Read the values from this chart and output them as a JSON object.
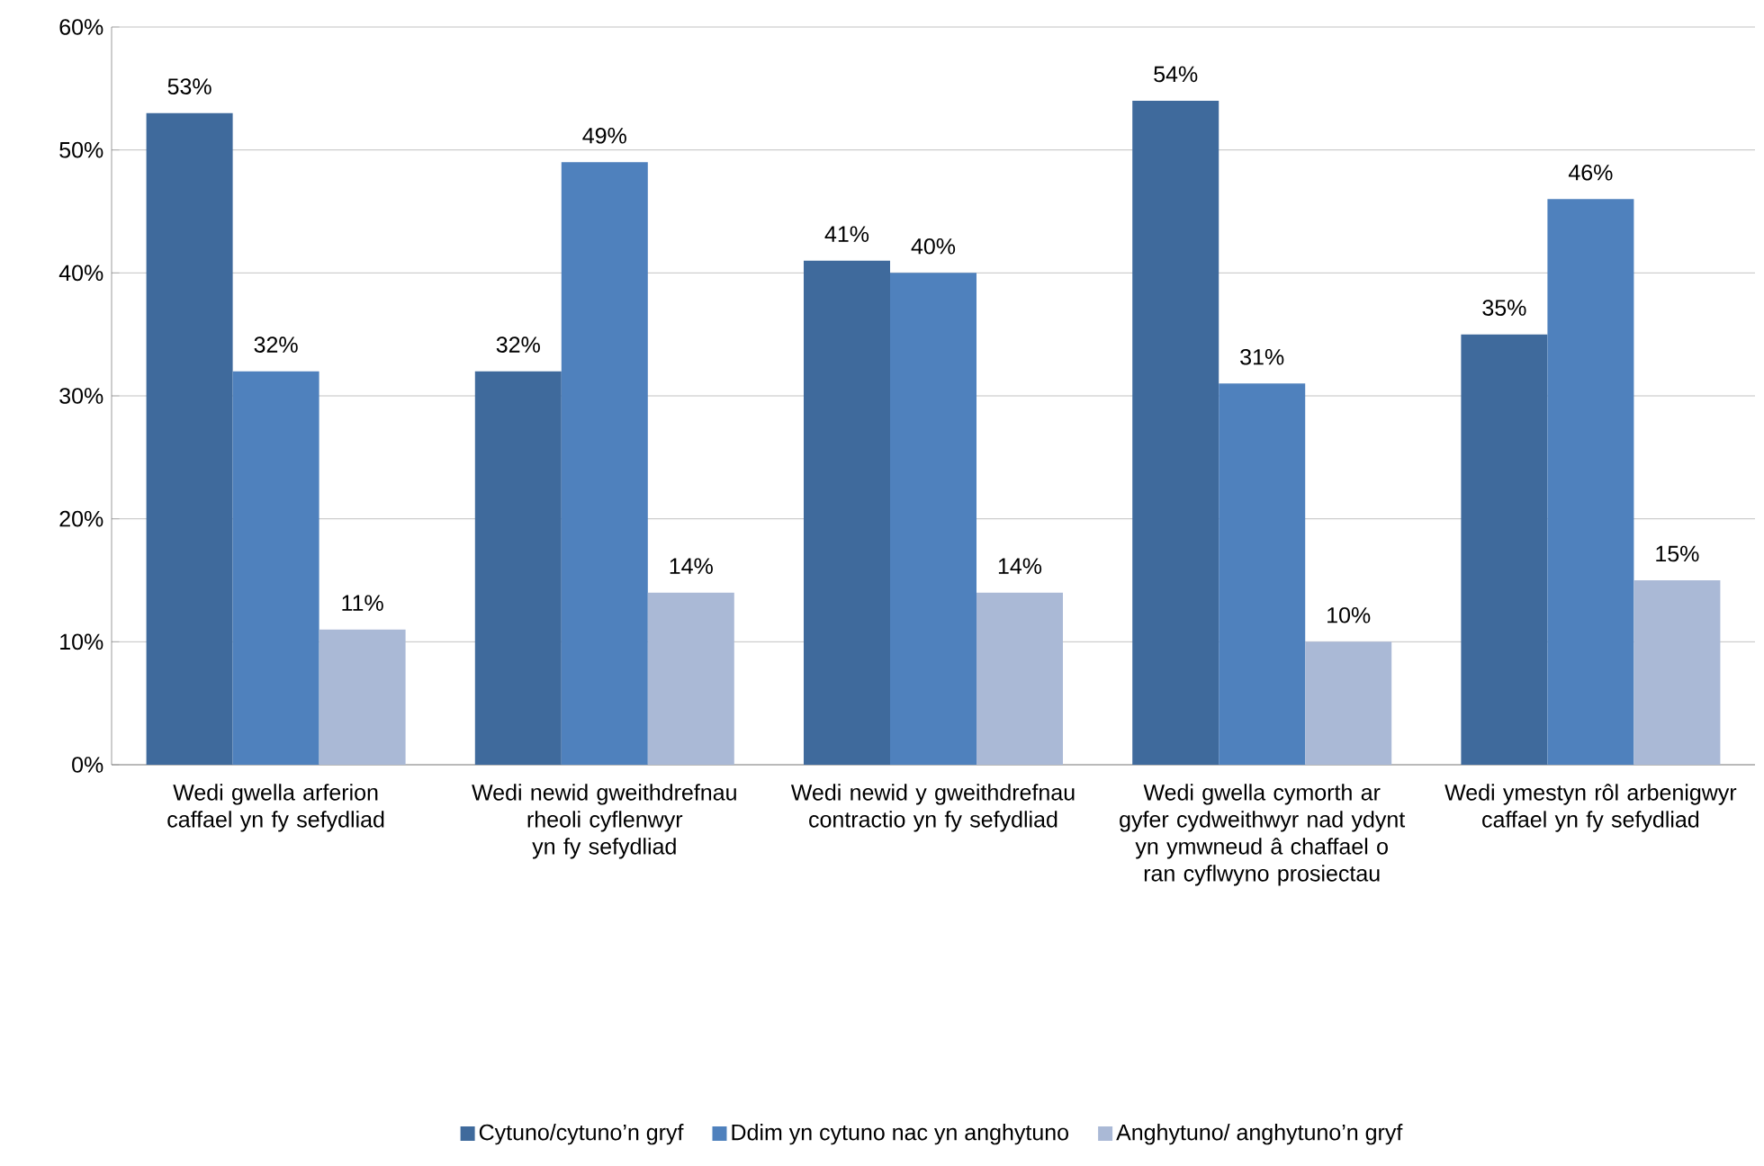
{
  "chart_data": {
    "type": "bar",
    "categories": [
      "Wedi gwella arferion caffael yn fy sefydliad",
      "Wedi newid gweithdrefnau rheoli cyflenwyr yn fy sefydliad",
      "Wedi newid y gweithdrefnau contractio yn fy sefydliad",
      "Wedi gwella cymorth ar gyfer cydweithwyr nad ydynt yn ymwneud â chaffael o ran cyflwyno prosiectau",
      "Wedi ymestyn rôl arbenigwyr caffael yn fy sefydliad"
    ],
    "series": [
      {
        "name": "Cytuno/cytuno’n gryf",
        "color": "#3f6a9c",
        "values": [
          53,
          32,
          41,
          54,
          35
        ],
        "value_labels": [
          "53%",
          "32%",
          "41%",
          "54%",
          "35%"
        ]
      },
      {
        "name": "Ddim yn cytuno nac yn anghytuno",
        "color": "#4f81bd",
        "values": [
          32,
          49,
          40,
          31,
          46
        ],
        "value_labels": [
          "32%",
          "49%",
          "40%",
          "31%",
          "46%"
        ]
      },
      {
        "name": "Anghytuno/ anghytuno’n gryf",
        "color": "#aab9d6",
        "values": [
          11,
          14,
          14,
          10,
          15
        ],
        "value_labels": [
          "11%",
          "14%",
          "14%",
          "10%",
          "15%"
        ]
      }
    ],
    "ylim": [
      0,
      60
    ],
    "yticks": [
      {
        "value": 0,
        "label": "0%"
      },
      {
        "value": 10,
        "label": "10%"
      },
      {
        "value": 20,
        "label": "20%"
      },
      {
        "value": 30,
        "label": "30%"
      },
      {
        "value": 40,
        "label": "40%"
      },
      {
        "value": 50,
        "label": "50%"
      },
      {
        "value": 60,
        "label": "60%"
      }
    ],
    "grid": "y",
    "legend": "bottom"
  }
}
